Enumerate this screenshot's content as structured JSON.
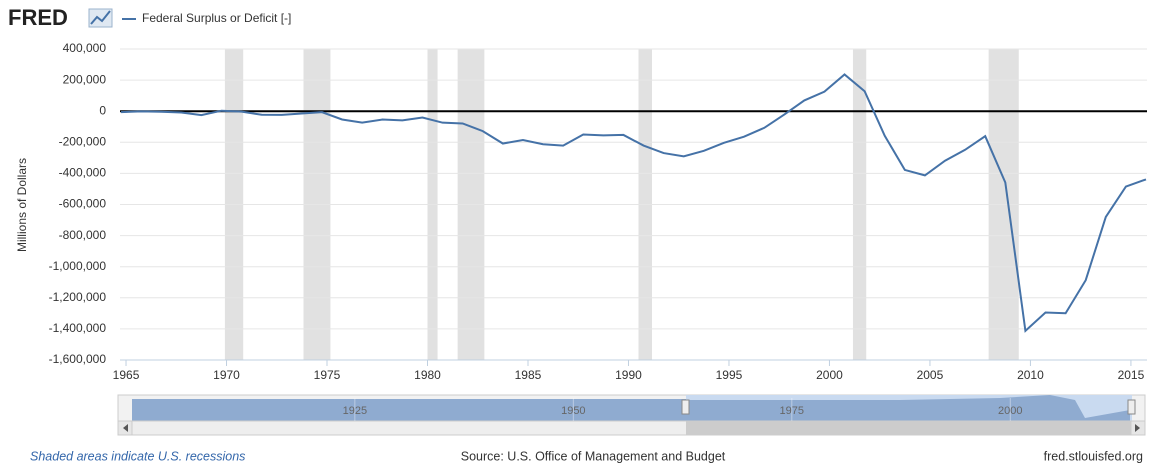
{
  "chart_data": {
    "type": "line",
    "logo": "FRED",
    "ylabel": "Millions of Dollars",
    "series": [
      {
        "name": "Federal Surplus or Deficit [-]",
        "color": "#4572a7",
        "x": [
          1964.75,
          1965.75,
          1966.75,
          1967.75,
          1968.75,
          1969.75,
          1970.75,
          1971.75,
          1972.75,
          1973.75,
          1974.75,
          1975.75,
          1976.75,
          1977.75,
          1978.75,
          1979.75,
          1980.75,
          1981.75,
          1982.75,
          1983.75,
          1984.75,
          1985.75,
          1986.75,
          1987.75,
          1988.75,
          1989.75,
          1990.75,
          1991.75,
          1992.75,
          1993.75,
          1994.75,
          1995.75,
          1996.75,
          1997.75,
          1998.75,
          1999.75,
          2000.75,
          2001.75,
          2002.75,
          2003.75,
          2004.75,
          2005.75,
          2006.75,
          2007.75,
          2008.75,
          2009.75,
          2010.75,
          2011.75,
          2012.75,
          2013.75,
          2014.75,
          2015.75
        ],
        "values": [
          -5915,
          -1411,
          -3698,
          -8643,
          -25161,
          3242,
          -2842,
          -23033,
          -23373,
          -14908,
          -6135,
          -53242,
          -73732,
          -53659,
          -59185,
          -40726,
          -73830,
          -78968,
          -127977,
          -207802,
          -185367,
          -212308,
          -221227,
          -149730,
          -155178,
          -152639,
          -221036,
          -269238,
          -290321,
          -255051,
          -203186,
          -163952,
          -107431,
          -21884,
          69270,
          125610,
          236241,
          128236,
          -157758,
          -377585,
          -412727,
          -318346,
          -248181,
          -160701,
          -458553,
          -1412688,
          -1294373,
          -1299599,
          -1087024,
          -679775,
          -484602,
          -438496
        ]
      }
    ],
    "recessions": [
      [
        1969.92,
        1970.83
      ],
      [
        1973.83,
        1975.17
      ],
      [
        1980.0,
        1980.5
      ],
      [
        1981.5,
        1982.83
      ],
      [
        1990.5,
        1991.17
      ],
      [
        2001.17,
        2001.83
      ],
      [
        2007.92,
        2009.42
      ]
    ],
    "recession_color": "#e1e1e1",
    "xlim": [
      1964.7,
      2015.8
    ],
    "xticks": [
      1965,
      1970,
      1975,
      1980,
      1985,
      1990,
      1995,
      2000,
      2005,
      2010,
      2015
    ],
    "ylim": [
      -1600000,
      400000
    ],
    "yticks": [
      {
        "value": 400000,
        "label": "400,000"
      },
      {
        "value": 200000,
        "label": "200,000"
      },
      0,
      {
        "value": -200000,
        "label": "-200,000"
      },
      {
        "value": -400000,
        "label": "-400,000"
      },
      {
        "value": -600000,
        "label": "-600,000"
      },
      {
        "value": -800000,
        "label": "-800,000"
      },
      {
        "value": -1000000,
        "label": "-1,000,000"
      },
      {
        "value": -1200000,
        "label": "-1,200,000"
      },
      {
        "value": -1400000,
        "label": "-1,400,000"
      },
      {
        "value": -1600000,
        "label": "-1,600,000"
      }
    ],
    "grid": true,
    "navigator": {
      "xlim": [
        1899.5,
        2014.5
      ],
      "xticks": [
        1925,
        1950,
        1975,
        2000
      ]
    },
    "footnote": "Shaded areas indicate U.S. recessions",
    "source": "Source: U.S. Office of Management and Budget",
    "site": "fred.stlouisfed.org"
  }
}
